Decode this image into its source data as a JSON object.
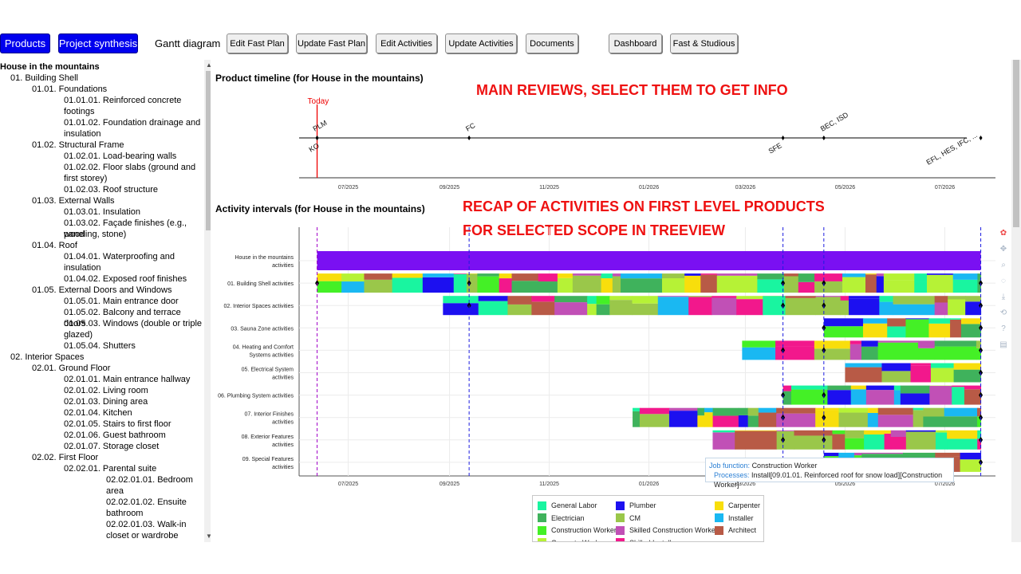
{
  "toolbar": {
    "products": "Products",
    "project_synthesis": "Project synthesis",
    "gantt": "Gantt diagram",
    "edit_fast_plan": "Edit Fast Plan",
    "update_fast_plan": "Update Fast Plan",
    "edit_activities": "Edit Activities",
    "update_activities": "Update Activities",
    "documents": "Documents",
    "dashboard": "Dashboard",
    "fast_studious": "Fast & Studious"
  },
  "tree": {
    "root": "House in the mountains",
    "items": [
      "01. Building Shell",
      "01.01. Foundations",
      "01.01.01. Reinforced concrete",
      "footings",
      "01.01.02. Foundation drainage and",
      "insulation",
      "01.02. Structural Frame",
      "01.02.01. Load-bearing walls",
      "01.02.02. Floor slabs (ground and",
      "first storey)",
      "01.02.03. Roof structure",
      "01.03. External Walls",
      "01.03.01. Insulation",
      "01.03.02. Façade finishes (e.g., wood",
      "paneling, stone)",
      "01.04. Roof",
      "01.04.01. Waterproofing and",
      "insulation",
      "01.04.02. Exposed roof finishes",
      "01.05. External Doors and Windows",
      "01.05.01. Main entrance door",
      "01.05.02. Balcony and terrace doors",
      "01.05.03. Windows (double or triple",
      "glazed)",
      "01.05.04. Shutters",
      "02. Interior Spaces",
      "02.01. Ground Floor",
      "02.01.01. Main entrance hallway",
      "02.01.02. Living room",
      "02.01.03. Dining area",
      "02.01.04. Kitchen",
      "02.01.05. Stairs to first floor",
      "02.01.06. Guest bathroom",
      "02.01.07. Storage closet",
      "02.02. First Floor",
      "02.02.01. Parental suite",
      "02.02.01.01. Bedroom",
      "area",
      "02.02.01.02. Ensuite",
      "bathroom",
      "02.02.01.03. Walk-in",
      "closet or wardrobe"
    ]
  },
  "annotations": {
    "main_reviews": "MAIN REVIEWS, SELECT THEM TO GET INFO",
    "recap_line1": "RECAP OF ACTIVITIES ON FIRST LEVEL PRODUCTS",
    "recap_line2": "FOR SELECTED SCOPE IN TREEVIEW"
  },
  "timeline": {
    "title": "Product timeline (for House in the mountains)",
    "today_label": "Today",
    "milestones": [
      {
        "label": "PLM",
        "date": "2025-06-12"
      },
      {
        "label": "KO",
        "date": "2025-06-12"
      },
      {
        "label": "FC",
        "date": "2025-09-13"
      },
      {
        "label": "SFE",
        "date": "2026-03-24"
      },
      {
        "label": "BEC, ISD",
        "date": "2026-04-18"
      },
      {
        "label": "EFL, HES, IFC, ...",
        "date": "2026-07-23"
      }
    ],
    "x_ticks": [
      "07/2025",
      "09/2025",
      "11/2025",
      "01/2026",
      "03/2026",
      "05/2026",
      "07/2026"
    ]
  },
  "chart_data": {
    "type": "gantt",
    "title": "Activity intervals (for House in the mountains)",
    "x_ticks": [
      "07/2025",
      "09/2025",
      "11/2025",
      "01/2026",
      "03/2026",
      "05/2026",
      "07/2026"
    ],
    "review_dates": [
      "2025-06-12",
      "2025-09-13",
      "2026-03-24",
      "2026-04-18",
      "2026-07-23"
    ],
    "rows": [
      {
        "label": [
          "House in the mountains",
          "activities"
        ],
        "start": "2025-06-12",
        "end": "2026-07-23"
      },
      {
        "label": [
          "01. Building Shell activities"
        ],
        "start": "2025-06-12",
        "end": "2026-07-23"
      },
      {
        "label": [
          "02. Interior Spaces activities"
        ],
        "start": "2025-08-28",
        "end": "2026-07-23"
      },
      {
        "label": [
          "03. Sauna Zone activities"
        ],
        "start": "2026-04-18",
        "end": "2026-07-23"
      },
      {
        "label": [
          "04. Heating and Comfort",
          "Systems activities"
        ],
        "start": "2026-02-27",
        "end": "2026-07-23"
      },
      {
        "label": [
          "05. Electrical System",
          "activities"
        ],
        "start": "2026-05-01",
        "end": "2026-07-23"
      },
      {
        "label": [
          "06. Plumbing System activities"
        ],
        "start": "2026-03-24",
        "end": "2026-07-23"
      },
      {
        "label": [
          "07. Interior Finishes",
          "activities"
        ],
        "start": "2025-12-22",
        "end": "2026-07-23"
      },
      {
        "label": [
          "08. Exterior Features",
          "activities"
        ],
        "start": "2026-02-09",
        "end": "2026-07-23"
      },
      {
        "label": [
          "09. Special Features",
          "activities"
        ],
        "start": "2026-04-18",
        "end": "2026-07-23"
      }
    ],
    "legend": [
      {
        "name": "General Labor",
        "color": "#19f5a0"
      },
      {
        "name": "Plumber",
        "color": "#1c10f0"
      },
      {
        "name": "Carpenter",
        "color": "#f8de0c"
      },
      {
        "name": "Electrician",
        "color": "#3fb25c"
      },
      {
        "name": "CM",
        "color": "#9ac74a"
      },
      {
        "name": "Installer",
        "color": "#1ab8f2"
      },
      {
        "name": "Construction Worker",
        "color": "#44f026"
      },
      {
        "name": "Skilled Construction Worker",
        "color": "#c150b6"
      },
      {
        "name": "Architect",
        "color": "#b85a46"
      },
      {
        "name": "Concrete Worker",
        "color": "#b6f236"
      },
      {
        "name": "Skilled Installer",
        "color": "#f2188c"
      }
    ],
    "tooltip": {
      "job_function_key": "Job function:",
      "job_function_val": "Construction Worker",
      "processes_key": "Processes:",
      "processes_val": "Install[09.01.01. Reinforced roof for snow load][Construction Worker]"
    }
  }
}
